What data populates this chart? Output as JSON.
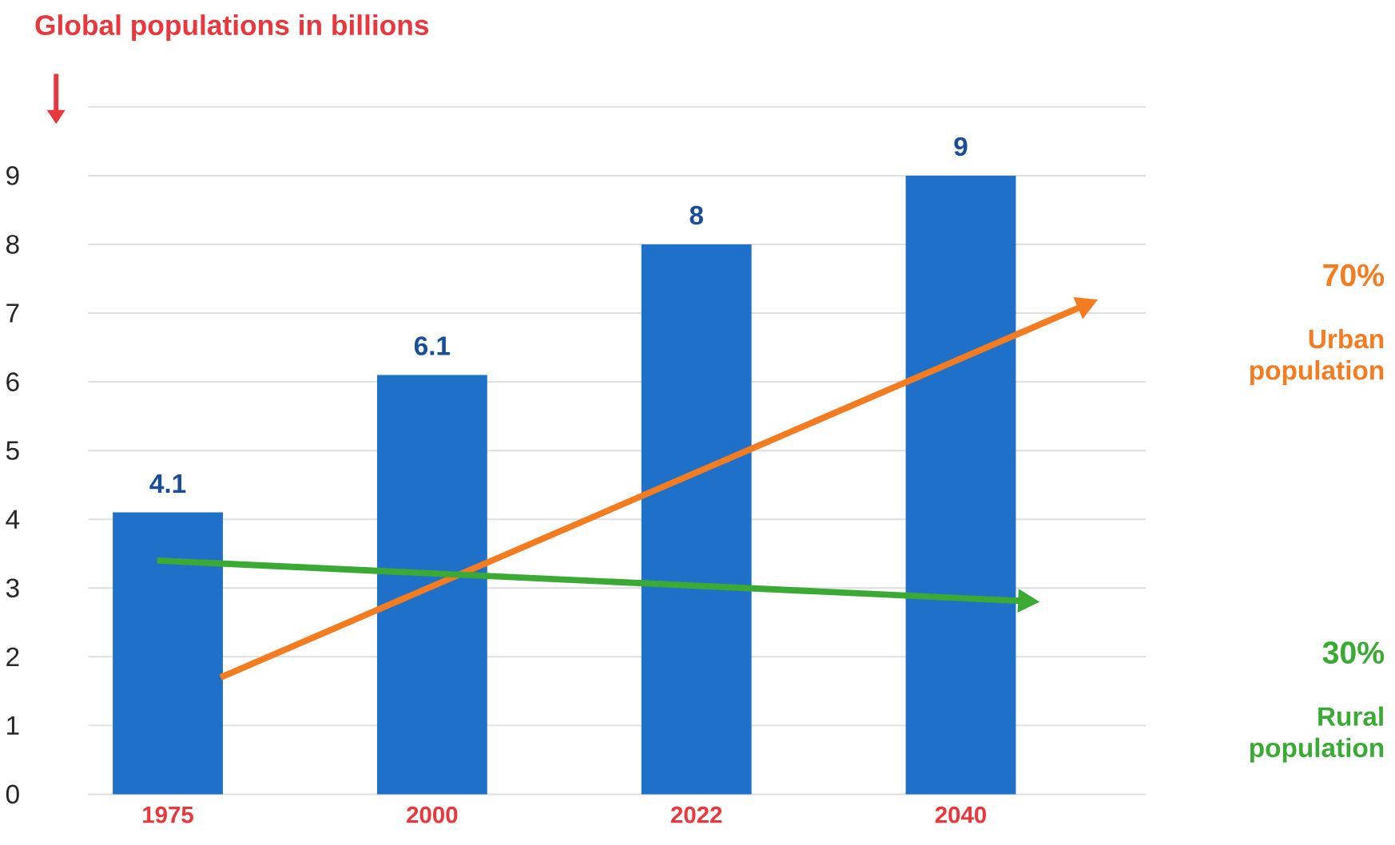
{
  "chart_data": {
    "type": "bar",
    "title": "Global populations in billions",
    "categories": [
      "1975",
      "2000",
      "2022",
      "2040"
    ],
    "values": [
      4.1,
      6.1,
      8,
      9
    ],
    "color": "#1f70c8",
    "data_labels": true,
    "ylim": [
      0,
      10
    ],
    "yticks": [
      0,
      1,
      2,
      3,
      4,
      5,
      6,
      7,
      8,
      9,
      {
        "value": 10,
        "label": null
      }
    ],
    "grid": "y",
    "annotations": [
      "70%",
      "Urban population",
      "30%",
      "Rural population"
    ]
  }
}
